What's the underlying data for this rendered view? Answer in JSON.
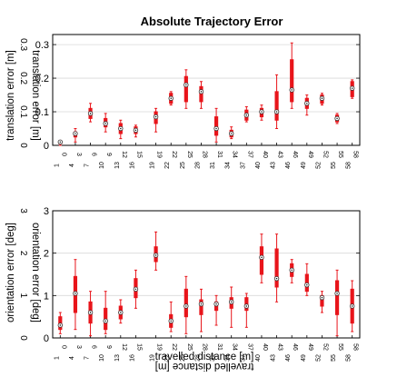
{
  "chart_data": [
    {
      "type": "box",
      "title": "Absolute Trajectory Error",
      "ylabel": "translation error [m]",
      "mirrored_ylabel": "translation error [m]",
      "xlabel": "",
      "ylim": [
        0,
        0.33
      ],
      "yticks": [
        "0",
        "0.1",
        "0.2",
        "0.3"
      ],
      "mirrored_yticks": [
        "0",
        "0.1",
        "0.2",
        "0.3"
      ],
      "grid": "y",
      "x_ticks": [
        0,
        3,
        6,
        9,
        12,
        15,
        19,
        22,
        25,
        28,
        31,
        34,
        37,
        40,
        43,
        46,
        49,
        52,
        55,
        58
      ],
      "x_ticks_below": [
        "0",
        "3",
        "6",
        "9",
        "12",
        "15",
        "19",
        "22",
        "25",
        "28",
        "31",
        "34",
        "37",
        "40",
        "43",
        "46",
        "49",
        "52",
        "55",
        "58"
      ],
      "x_ticks_mirrored": [
        "1",
        "4",
        "7",
        "10",
        "13",
        "16",
        "19",
        "22",
        "25",
        "28",
        "31",
        "34",
        "37",
        "40",
        "43",
        "46",
        "49",
        "52",
        "55",
        "58"
      ],
      "boxes": [
        {
          "x": 0,
          "wmin": 0.0,
          "q1": 0.005,
          "median": 0.01,
          "q3": 0.012,
          "wmax": 0.015
        },
        {
          "x": 3,
          "wmin": 0.01,
          "q1": 0.025,
          "median": 0.035,
          "q3": 0.04,
          "wmax": 0.05
        },
        {
          "x": 6,
          "wmin": 0.07,
          "q1": 0.08,
          "median": 0.095,
          "q3": 0.11,
          "wmax": 0.125
        },
        {
          "x": 9,
          "wmin": 0.04,
          "q1": 0.055,
          "median": 0.065,
          "q3": 0.08,
          "wmax": 0.095
        },
        {
          "x": 12,
          "wmin": 0.02,
          "q1": 0.035,
          "median": 0.05,
          "q3": 0.065,
          "wmax": 0.075
        },
        {
          "x": 15,
          "wmin": 0.025,
          "q1": 0.035,
          "median": 0.045,
          "q3": 0.055,
          "wmax": 0.06
        },
        {
          "x": 19,
          "wmin": 0.04,
          "q1": 0.065,
          "median": 0.085,
          "q3": 0.1,
          "wmax": 0.11
        },
        {
          "x": 22,
          "wmin": 0.12,
          "q1": 0.125,
          "median": 0.14,
          "q3": 0.155,
          "wmax": 0.16
        },
        {
          "x": 25,
          "wmin": 0.11,
          "q1": 0.13,
          "median": 0.18,
          "q3": 0.205,
          "wmax": 0.225
        },
        {
          "x": 28,
          "wmin": 0.11,
          "q1": 0.13,
          "median": 0.16,
          "q3": 0.175,
          "wmax": 0.19
        },
        {
          "x": 31,
          "wmin": 0.01,
          "q1": 0.03,
          "median": 0.05,
          "q3": 0.085,
          "wmax": 0.11
        },
        {
          "x": 34,
          "wmin": 0.02,
          "q1": 0.025,
          "median": 0.035,
          "q3": 0.045,
          "wmax": 0.055
        },
        {
          "x": 37,
          "wmin": 0.07,
          "q1": 0.075,
          "median": 0.09,
          "q3": 0.105,
          "wmax": 0.115
        },
        {
          "x": 40,
          "wmin": 0.075,
          "q1": 0.085,
          "median": 0.1,
          "q3": 0.11,
          "wmax": 0.12
        },
        {
          "x": 43,
          "wmin": 0.05,
          "q1": 0.075,
          "median": 0.1,
          "q3": 0.16,
          "wmax": 0.21
        },
        {
          "x": 46,
          "wmin": 0.11,
          "q1": 0.13,
          "median": 0.165,
          "q3": 0.255,
          "wmax": 0.305
        },
        {
          "x": 49,
          "wmin": 0.09,
          "q1": 0.11,
          "median": 0.125,
          "q3": 0.14,
          "wmax": 0.15
        },
        {
          "x": 52,
          "wmin": 0.12,
          "q1": 0.125,
          "median": 0.14,
          "q3": 0.15,
          "wmax": 0.155
        },
        {
          "x": 55,
          "wmin": 0.065,
          "q1": 0.07,
          "median": 0.08,
          "q3": 0.09,
          "wmax": 0.095
        },
        {
          "x": 58,
          "wmin": 0.14,
          "q1": 0.145,
          "median": 0.17,
          "q3": 0.19,
          "wmax": 0.195
        }
      ]
    },
    {
      "type": "box",
      "title": "",
      "ylabel": "orientation error [deg]",
      "mirrored_ylabel": "orientation error [deg]",
      "xlabel": "travelled distance [m]",
      "mirrored_xlabel": "travelled distance [m]",
      "ylim": [
        0,
        3
      ],
      "yticks": [
        "0",
        "1",
        "2",
        "3"
      ],
      "mirrored_yticks": [
        "0",
        "1",
        "2",
        "3"
      ],
      "grid": "y",
      "x_ticks": [
        0,
        3,
        6,
        9,
        12,
        15,
        19,
        22,
        25,
        28,
        31,
        34,
        37,
        40,
        43,
        46,
        49,
        52,
        55,
        58
      ],
      "x_ticks_below": [
        "0",
        "3",
        "6",
        "9",
        "12",
        "15",
        "19",
        "22",
        "25",
        "28",
        "31",
        "34",
        "37",
        "40",
        "43",
        "46",
        "49",
        "52",
        "55",
        "58"
      ],
      "x_ticks_mirrored": [
        "1",
        "4",
        "7",
        "10",
        "13",
        "16",
        "19",
        "22",
        "25",
        "28",
        "31",
        "34",
        "37",
        "40",
        "43",
        "46",
        "49",
        "52",
        "55",
        "58"
      ],
      "boxes": [
        {
          "x": 0,
          "wmin": 0.1,
          "q1": 0.2,
          "median": 0.3,
          "q3": 0.5,
          "wmax": 0.6
        },
        {
          "x": 3,
          "wmin": 0.2,
          "q1": 0.6,
          "median": 1.05,
          "q3": 1.45,
          "wmax": 1.85
        },
        {
          "x": 6,
          "wmin": 0.05,
          "q1": 0.35,
          "median": 0.6,
          "q3": 0.85,
          "wmax": 1.1
        },
        {
          "x": 9,
          "wmin": 0.1,
          "q1": 0.2,
          "median": 0.4,
          "q3": 0.7,
          "wmax": 1.1
        },
        {
          "x": 12,
          "wmin": 0.35,
          "q1": 0.45,
          "median": 0.6,
          "q3": 0.75,
          "wmax": 0.9
        },
        {
          "x": 15,
          "wmin": 0.7,
          "q1": 0.95,
          "median": 1.15,
          "q3": 1.4,
          "wmax": 1.6
        },
        {
          "x": 19,
          "wmin": 1.6,
          "q1": 1.8,
          "median": 1.95,
          "q3": 2.15,
          "wmax": 2.5
        },
        {
          "x": 22,
          "wmin": 0.15,
          "q1": 0.25,
          "median": 0.4,
          "q3": 0.55,
          "wmax": 0.85
        },
        {
          "x": 25,
          "wmin": 0.1,
          "q1": 0.5,
          "median": 0.75,
          "q3": 1.15,
          "wmax": 1.45
        },
        {
          "x": 28,
          "wmin": 0.15,
          "q1": 0.55,
          "median": 0.8,
          "q3": 0.9,
          "wmax": 1.15
        },
        {
          "x": 31,
          "wmin": 0.3,
          "q1": 0.65,
          "median": 0.8,
          "q3": 0.85,
          "wmax": 1.0
        },
        {
          "x": 34,
          "wmin": 0.25,
          "q1": 0.7,
          "median": 0.85,
          "q3": 0.95,
          "wmax": 1.2
        },
        {
          "x": 37,
          "wmin": 0.25,
          "q1": 0.65,
          "median": 0.75,
          "q3": 0.95,
          "wmax": 1.05
        },
        {
          "x": 40,
          "wmin": 1.3,
          "q1": 1.5,
          "median": 1.9,
          "q3": 2.15,
          "wmax": 2.45
        },
        {
          "x": 43,
          "wmin": 0.85,
          "q1": 1.2,
          "median": 1.4,
          "q3": 2.1,
          "wmax": 2.45
        },
        {
          "x": 46,
          "wmin": 1.3,
          "q1": 1.45,
          "median": 1.6,
          "q3": 1.75,
          "wmax": 1.85
        },
        {
          "x": 49,
          "wmin": 1.0,
          "q1": 1.1,
          "median": 1.25,
          "q3": 1.5,
          "wmax": 1.75
        },
        {
          "x": 52,
          "wmin": 0.6,
          "q1": 0.75,
          "median": 0.95,
          "q3": 1.0,
          "wmax": 1.1
        },
        {
          "x": 55,
          "wmin": 0.05,
          "q1": 0.55,
          "median": 1.05,
          "q3": 1.35,
          "wmax": 1.6
        },
        {
          "x": 58,
          "wmin": 0.15,
          "q1": 0.35,
          "median": 0.75,
          "q3": 1.15,
          "wmax": 1.35
        }
      ]
    }
  ],
  "style": {
    "box_color": "#e8141a",
    "axis_color": "#000000",
    "grid_color": "#d9d9d9"
  }
}
